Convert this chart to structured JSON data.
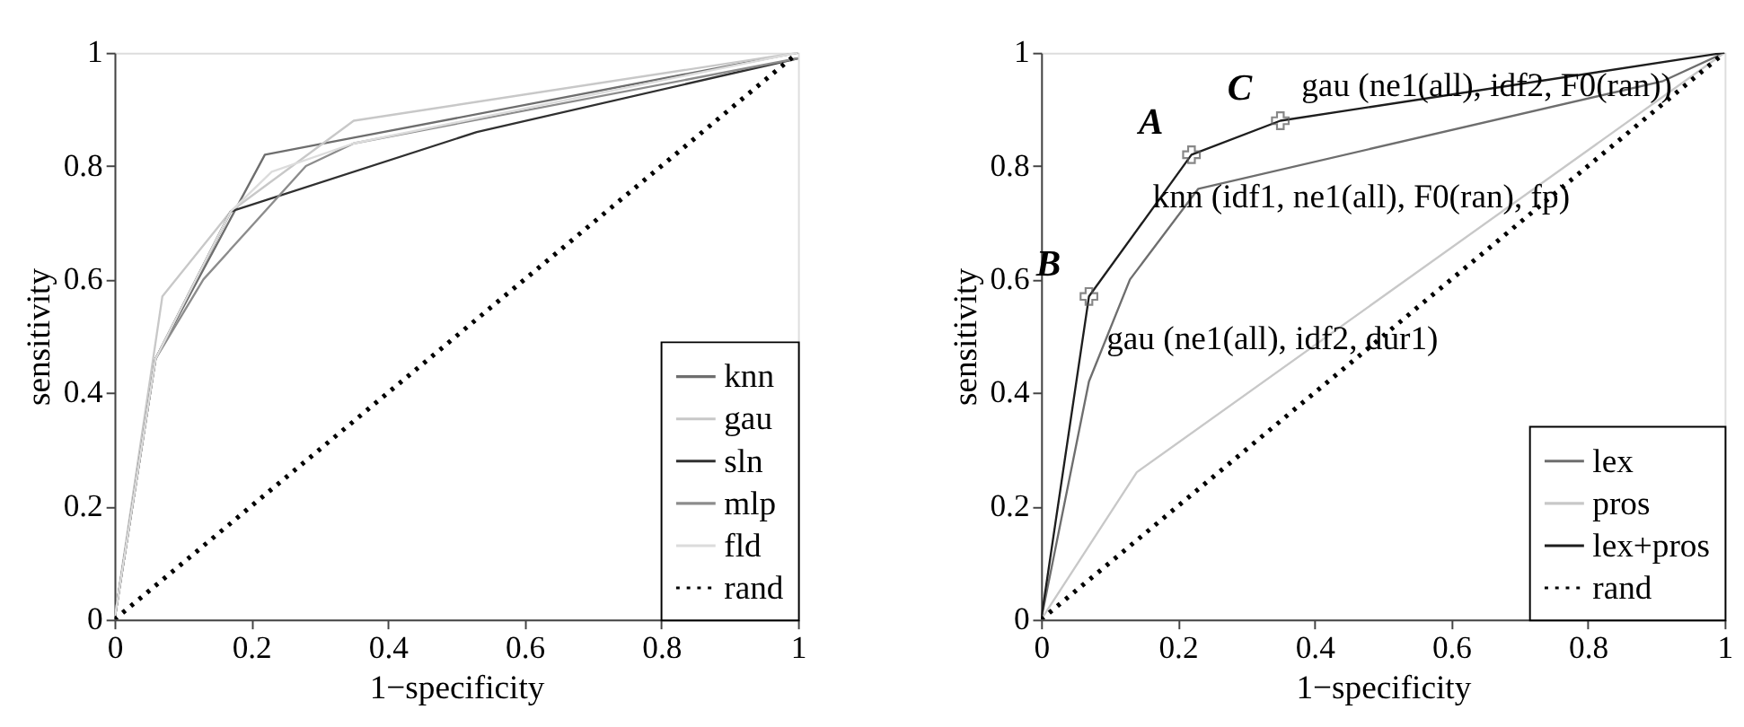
{
  "chart_data": [
    {
      "type": "line",
      "xlabel": "1−specificity",
      "ylabel": "sensitivity",
      "xlim": [
        0,
        1
      ],
      "ylim": [
        0,
        1
      ],
      "xticks": [
        0,
        0.2,
        0.4,
        0.6,
        0.8,
        1
      ],
      "yticks": [
        0,
        0.2,
        0.4,
        0.6,
        0.8,
        1
      ],
      "grid": false,
      "legend": "bottom right",
      "marker": "none",
      "series": [
        {
          "name": "knn",
          "color": "#6e6e6e",
          "line_style": "solid",
          "x": [
            0,
            0.06,
            0.22,
            0.35,
            1
          ],
          "values": [
            0,
            0.46,
            0.82,
            0.85,
            1
          ]
        },
        {
          "name": "gau",
          "color": "#c8c8c8",
          "line_style": "solid",
          "x": [
            0,
            0.07,
            0.17,
            0.35,
            1
          ],
          "values": [
            0,
            0.57,
            0.72,
            0.88,
            1
          ]
        },
        {
          "name": "sln",
          "color": "#303030",
          "line_style": "solid",
          "x": [
            0,
            0.06,
            0.17,
            0.53,
            1
          ],
          "values": [
            0,
            0.46,
            0.72,
            0.86,
            0.99
          ]
        },
        {
          "name": "mlp",
          "color": "#8c8c8c",
          "line_style": "solid",
          "x": [
            0,
            0.06,
            0.13,
            0.28,
            0.35,
            1
          ],
          "values": [
            0,
            0.46,
            0.6,
            0.8,
            0.84,
            0.99
          ]
        },
        {
          "name": "fld",
          "color": "#dcdcdc",
          "line_style": "solid",
          "x": [
            0,
            0.06,
            0.17,
            0.23,
            0.35,
            1
          ],
          "values": [
            0,
            0.46,
            0.72,
            0.79,
            0.84,
            1
          ]
        },
        {
          "name": "rand",
          "color": "#000000",
          "line_style": "dotted",
          "x": [
            0,
            1
          ],
          "values": [
            0,
            1
          ]
        }
      ]
    },
    {
      "type": "line",
      "xlabel": "1−specificity",
      "ylabel": "sensitivity",
      "xlim": [
        0,
        1
      ],
      "ylim": [
        0,
        1
      ],
      "xticks": [
        0,
        0.2,
        0.4,
        0.6,
        0.8,
        1
      ],
      "yticks": [
        0,
        0.2,
        0.4,
        0.6,
        0.8,
        1
      ],
      "grid": false,
      "legend": "bottom right",
      "marker": "none",
      "series": [
        {
          "name": "lex",
          "color": "#6e6e6e",
          "line_style": "solid",
          "x": [
            0,
            0.07,
            0.13,
            0.23,
            0.91,
            1
          ],
          "values": [
            0,
            0.42,
            0.6,
            0.76,
            0.95,
            1
          ]
        },
        {
          "name": "pros",
          "color": "#c8c8c8",
          "line_style": "solid",
          "x": [
            0,
            0.14,
            1
          ],
          "values": [
            0,
            0.26,
            1
          ]
        },
        {
          "name": "lex+pros",
          "color": "#1e1e1e",
          "line_style": "solid",
          "x": [
            0,
            0.07,
            0.22,
            0.35,
            1
          ],
          "values": [
            0,
            0.57,
            0.82,
            0.88,
            1
          ]
        },
        {
          "name": "rand",
          "color": "#000000",
          "line_style": "dotted",
          "x": [
            0,
            1
          ],
          "values": [
            0,
            1
          ]
        },
        {
          "type": "scatter",
          "marker": "cross",
          "color": "#555555",
          "x": [
            0.07,
            0.22,
            0.35
          ],
          "values": [
            0.57,
            0.82,
            0.88
          ]
        }
      ],
      "annotations": [
        {
          "text": "A",
          "x": 0.22,
          "y": 0.82
        },
        {
          "text": "B",
          "x": 0.07,
          "y": 0.57
        },
        {
          "text": "C",
          "x": 0.35,
          "y": 0.88
        },
        {
          "text": "gau (ne1(all), idf2, F0(ran))",
          "x": 0.35,
          "y": 0.88
        },
        {
          "text": "knn (idf1, ne1(all), F0(ran), fp)",
          "x": 0.22,
          "y": 0.82
        },
        {
          "text": "gau (ne1(all), idf2, dur1)",
          "x": 0.07,
          "y": 0.57
        }
      ]
    }
  ]
}
